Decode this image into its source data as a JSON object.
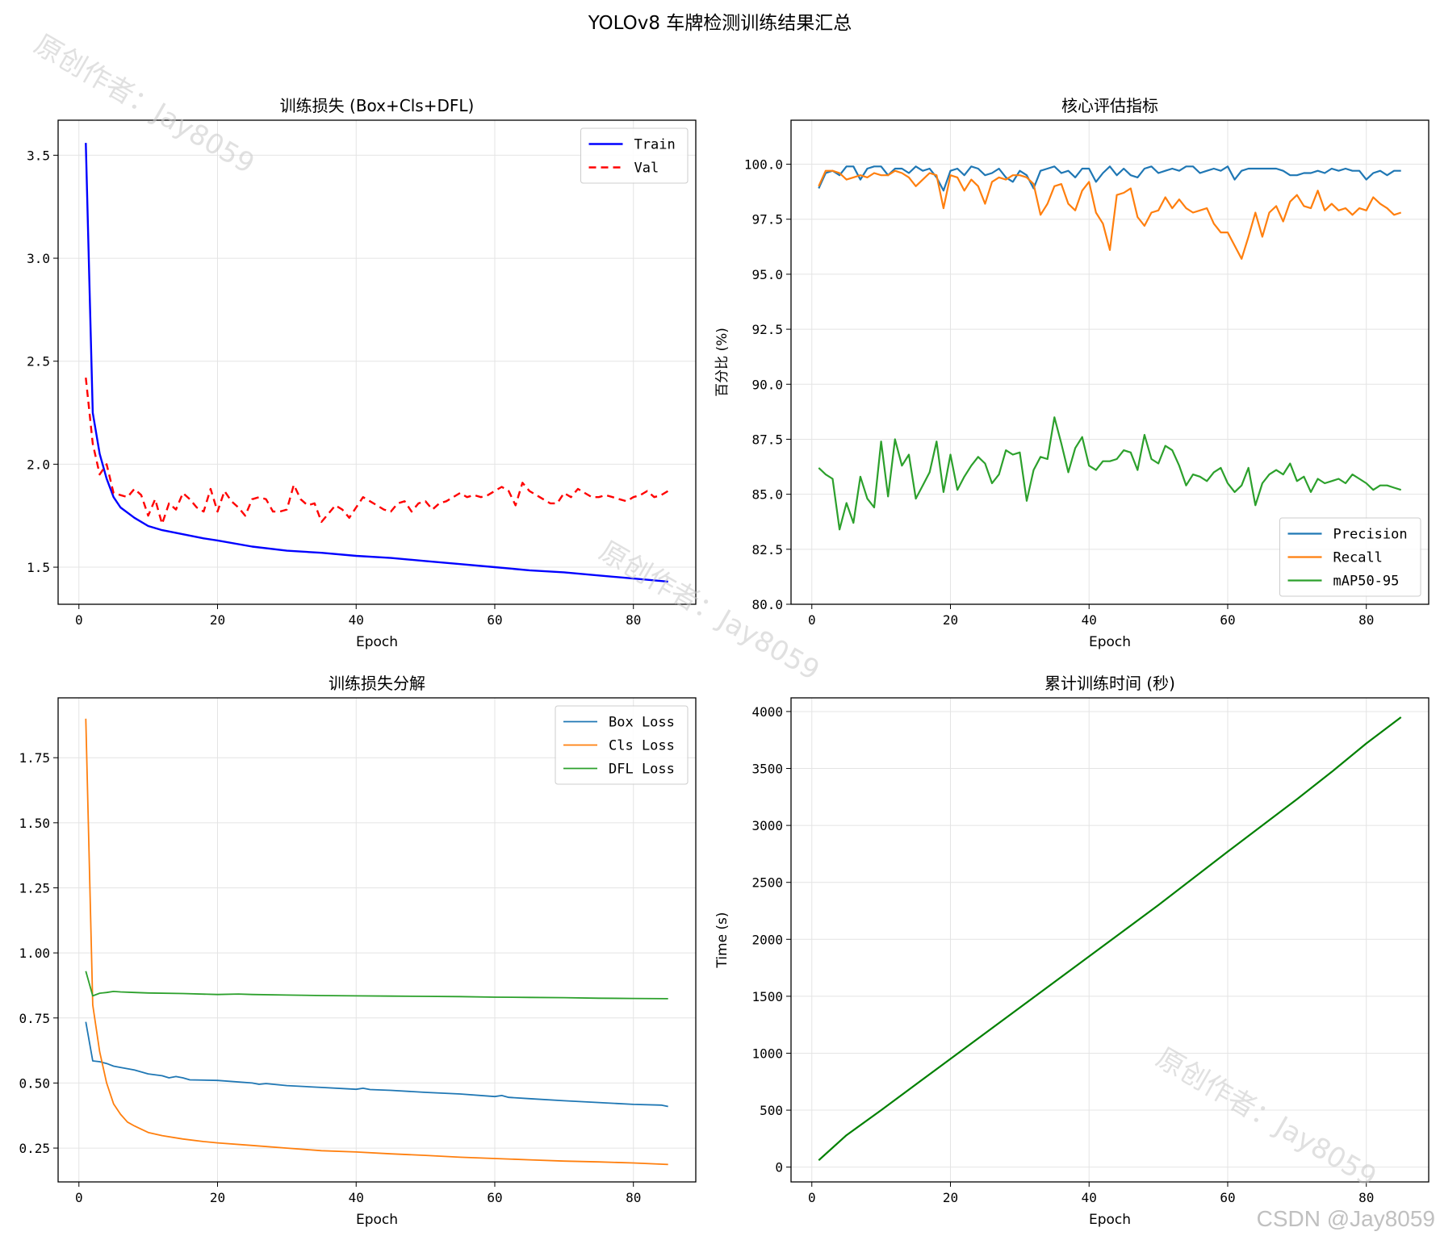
{
  "figure": {
    "suptitle": "YOLOv8 车牌检测训练结果汇总",
    "watermarks": [
      "原创作者：Jay8059",
      "原创作者：Jay8059",
      "原创作者：Jay8059"
    ],
    "credit": "CSDN @Jay8059"
  },
  "chart_data": [
    {
      "type": "line",
      "title": "训练损失 (Box+Cls+DFL)",
      "xlabel": "Epoch",
      "ylabel": "",
      "xlim": [
        -3,
        89
      ],
      "ylim": [
        1.32,
        3.67
      ],
      "xticks": [
        0,
        20,
        40,
        60,
        80
      ],
      "yticks": [
        1.5,
        2.0,
        2.5,
        3.0,
        3.5
      ],
      "ytick_format": 1,
      "grid": true,
      "legend": "top-right",
      "series": [
        {
          "name": "Train",
          "color": "#0000ff",
          "dash": "",
          "width": 2.4,
          "x": [
            1,
            2,
            3,
            4,
            5,
            6,
            8,
            10,
            12,
            15,
            18,
            20,
            25,
            30,
            35,
            40,
            45,
            50,
            55,
            60,
            65,
            70,
            75,
            80,
            85
          ],
          "y": [
            3.56,
            2.25,
            2.05,
            1.93,
            1.84,
            1.79,
            1.74,
            1.7,
            1.68,
            1.66,
            1.64,
            1.63,
            1.6,
            1.58,
            1.57,
            1.555,
            1.545,
            1.53,
            1.515,
            1.5,
            1.485,
            1.475,
            1.46,
            1.445,
            1.43
          ]
        },
        {
          "name": "Val",
          "color": "#ff0000",
          "dash": "9,6",
          "width": 2.4,
          "x": [
            1,
            2,
            3,
            4,
            5,
            6,
            7,
            8,
            9,
            10,
            11,
            12,
            13,
            14,
            15,
            16,
            17,
            18,
            19,
            20,
            21,
            22,
            23,
            24,
            25,
            26,
            27,
            28,
            29,
            30,
            31,
            32,
            33,
            34,
            35,
            36,
            37,
            38,
            39,
            40,
            41,
            42,
            43,
            44,
            45,
            46,
            47,
            48,
            49,
            50,
            51,
            52,
            53,
            54,
            55,
            56,
            57,
            58,
            59,
            60,
            61,
            62,
            63,
            64,
            65,
            66,
            67,
            68,
            69,
            70,
            71,
            72,
            73,
            74,
            75,
            76,
            77,
            78,
            79,
            80,
            81,
            82,
            83,
            84,
            85
          ],
          "y": [
            2.42,
            2.1,
            1.95,
            2.0,
            1.86,
            1.85,
            1.84,
            1.88,
            1.85,
            1.75,
            1.83,
            1.71,
            1.81,
            1.78,
            1.86,
            1.83,
            1.79,
            1.77,
            1.88,
            1.77,
            1.87,
            1.82,
            1.79,
            1.75,
            1.83,
            1.84,
            1.83,
            1.77,
            1.77,
            1.78,
            1.9,
            1.83,
            1.8,
            1.81,
            1.72,
            1.76,
            1.8,
            1.78,
            1.74,
            1.79,
            1.84,
            1.82,
            1.8,
            1.78,
            1.77,
            1.81,
            1.82,
            1.77,
            1.81,
            1.82,
            1.78,
            1.81,
            1.82,
            1.84,
            1.86,
            1.84,
            1.85,
            1.84,
            1.85,
            1.87,
            1.89,
            1.87,
            1.8,
            1.91,
            1.87,
            1.85,
            1.83,
            1.81,
            1.81,
            1.86,
            1.84,
            1.88,
            1.86,
            1.84,
            1.84,
            1.85,
            1.84,
            1.83,
            1.82,
            1.84,
            1.85,
            1.87,
            1.84,
            1.85,
            1.87
          ]
        }
      ]
    },
    {
      "type": "line",
      "title": "核心评估指标",
      "xlabel": "Epoch",
      "ylabel": "百分比 (%)",
      "xlim": [
        -3,
        89
      ],
      "ylim": [
        80,
        102
      ],
      "xticks": [
        0,
        20,
        40,
        60,
        80
      ],
      "yticks": [
        80.0,
        82.5,
        85.0,
        87.5,
        90.0,
        92.5,
        95.0,
        97.5,
        100.0
      ],
      "ytick_format": 1,
      "grid": true,
      "legend": "bottom-right",
      "series": [
        {
          "name": "Precision",
          "color": "#1f77b4",
          "dash": "",
          "width": 2.2,
          "x": [
            1,
            2,
            3,
            4,
            5,
            6,
            7,
            8,
            9,
            10,
            11,
            12,
            13,
            14,
            15,
            16,
            17,
            18,
            19,
            20,
            21,
            22,
            23,
            24,
            25,
            26,
            27,
            28,
            29,
            30,
            31,
            32,
            33,
            34,
            35,
            36,
            37,
            38,
            39,
            40,
            41,
            42,
            43,
            44,
            45,
            46,
            47,
            48,
            49,
            50,
            51,
            52,
            53,
            54,
            55,
            56,
            57,
            58,
            59,
            60,
            61,
            62,
            63,
            64,
            65,
            66,
            67,
            68,
            69,
            70,
            71,
            72,
            73,
            74,
            75,
            76,
            77,
            78,
            79,
            80,
            81,
            82,
            83,
            84,
            85
          ],
          "y": [
            98.9,
            99.6,
            99.7,
            99.5,
            99.9,
            99.9,
            99.3,
            99.8,
            99.9,
            99.9,
            99.5,
            99.8,
            99.8,
            99.6,
            99.9,
            99.7,
            99.8,
            99.4,
            98.8,
            99.7,
            99.8,
            99.5,
            99.9,
            99.8,
            99.5,
            99.6,
            99.8,
            99.4,
            99.2,
            99.7,
            99.5,
            98.9,
            99.7,
            99.8,
            99.9,
            99.6,
            99.7,
            99.4,
            99.8,
            99.8,
            99.2,
            99.6,
            99.9,
            99.5,
            99.8,
            99.5,
            99.4,
            99.8,
            99.9,
            99.6,
            99.7,
            99.8,
            99.7,
            99.9,
            99.9,
            99.6,
            99.7,
            99.8,
            99.7,
            99.9,
            99.3,
            99.7,
            99.8,
            99.8,
            99.8,
            99.8,
            99.8,
            99.7,
            99.5,
            99.5,
            99.6,
            99.6,
            99.7,
            99.6,
            99.8,
            99.7,
            99.8,
            99.7,
            99.7,
            99.3,
            99.6,
            99.7,
            99.5,
            99.7,
            99.7
          ]
        },
        {
          "name": "Recall",
          "color": "#ff7f0e",
          "dash": "",
          "width": 2.2,
          "x": [
            1,
            2,
            3,
            4,
            5,
            6,
            7,
            8,
            9,
            10,
            11,
            12,
            13,
            14,
            15,
            16,
            17,
            18,
            19,
            20,
            21,
            22,
            23,
            24,
            25,
            26,
            27,
            28,
            29,
            30,
            31,
            32,
            33,
            34,
            35,
            36,
            37,
            38,
            39,
            40,
            41,
            42,
            43,
            44,
            45,
            46,
            47,
            48,
            49,
            50,
            51,
            52,
            53,
            54,
            55,
            56,
            57,
            58,
            59,
            60,
            61,
            62,
            63,
            64,
            65,
            66,
            67,
            68,
            69,
            70,
            71,
            72,
            73,
            74,
            75,
            76,
            77,
            78,
            79,
            80,
            81,
            82,
            83,
            84,
            85
          ],
          "y": [
            99.0,
            99.7,
            99.7,
            99.6,
            99.3,
            99.4,
            99.5,
            99.4,
            99.6,
            99.5,
            99.5,
            99.7,
            99.6,
            99.4,
            99.0,
            99.3,
            99.6,
            99.5,
            98.0,
            99.5,
            99.4,
            98.8,
            99.3,
            99.0,
            98.2,
            99.2,
            99.4,
            99.3,
            99.5,
            99.5,
            99.4,
            99.1,
            97.7,
            98.2,
            99.0,
            99.1,
            98.2,
            97.9,
            98.8,
            99.2,
            97.8,
            97.3,
            96.1,
            98.6,
            98.7,
            98.9,
            97.6,
            97.2,
            97.8,
            97.9,
            98.5,
            98.0,
            98.4,
            98.0,
            97.8,
            97.9,
            98.0,
            97.3,
            96.9,
            96.9,
            96.3,
            95.7,
            96.7,
            97.8,
            96.7,
            97.8,
            98.1,
            97.4,
            98.3,
            98.6,
            98.1,
            98.0,
            98.8,
            97.9,
            98.2,
            97.9,
            98.0,
            97.7,
            98.0,
            97.9,
            98.5,
            98.2,
            98.0,
            97.7,
            97.8
          ]
        },
        {
          "name": "mAP50-95",
          "color": "#2ca02c",
          "dash": "",
          "width": 2.2,
          "x": [
            1,
            2,
            3,
            4,
            5,
            6,
            7,
            8,
            9,
            10,
            11,
            12,
            13,
            14,
            15,
            16,
            17,
            18,
            19,
            20,
            21,
            22,
            23,
            24,
            25,
            26,
            27,
            28,
            29,
            30,
            31,
            32,
            33,
            34,
            35,
            36,
            37,
            38,
            39,
            40,
            41,
            42,
            43,
            44,
            45,
            46,
            47,
            48,
            49,
            50,
            51,
            52,
            53,
            54,
            55,
            56,
            57,
            58,
            59,
            60,
            61,
            62,
            63,
            64,
            65,
            66,
            67,
            68,
            69,
            70,
            71,
            72,
            73,
            74,
            75,
            76,
            77,
            78,
            79,
            80,
            81,
            82,
            83,
            84,
            85
          ],
          "y": [
            86.2,
            85.9,
            85.7,
            83.4,
            84.6,
            83.7,
            85.8,
            84.8,
            84.4,
            87.4,
            84.9,
            87.5,
            86.3,
            86.8,
            84.8,
            85.4,
            86.0,
            87.4,
            85.1,
            86.8,
            85.2,
            85.8,
            86.3,
            86.7,
            86.4,
            85.5,
            85.9,
            87.0,
            86.8,
            86.9,
            84.7,
            86.1,
            86.7,
            86.6,
            88.5,
            87.3,
            86.0,
            87.1,
            87.6,
            86.3,
            86.1,
            86.5,
            86.5,
            86.6,
            87.0,
            86.9,
            86.1,
            87.7,
            86.6,
            86.4,
            87.2,
            87.0,
            86.3,
            85.4,
            85.9,
            85.8,
            85.6,
            86.0,
            86.2,
            85.5,
            85.1,
            85.4,
            86.2,
            84.5,
            85.5,
            85.9,
            86.1,
            85.9,
            86.4,
            85.6,
            85.8,
            85.1,
            85.7,
            85.5,
            85.6,
            85.7,
            85.5,
            85.9,
            85.7,
            85.5,
            85.2,
            85.4,
            85.4,
            85.3,
            85.2
          ]
        }
      ]
    },
    {
      "type": "line",
      "title": "训练损失分解",
      "xlabel": "Epoch",
      "ylabel": "",
      "xlim": [
        -3,
        89
      ],
      "ylim": [
        0.12,
        1.98
      ],
      "xticks": [
        0,
        20,
        40,
        60,
        80
      ],
      "yticks": [
        0.25,
        0.5,
        0.75,
        1.0,
        1.25,
        1.5,
        1.75
      ],
      "ytick_format": 2,
      "grid": true,
      "legend": "top-right",
      "series": [
        {
          "name": "Box Loss",
          "color": "#1f77b4",
          "dash": "",
          "width": 1.8,
          "x": [
            1,
            2,
            3,
            4,
            5,
            6,
            8,
            10,
            12,
            13,
            14,
            15,
            16,
            20,
            25,
            26,
            27,
            30,
            35,
            40,
            41,
            42,
            45,
            50,
            55,
            60,
            61,
            62,
            65,
            70,
            75,
            80,
            84,
            85
          ],
          "y": [
            0.735,
            0.585,
            0.582,
            0.575,
            0.565,
            0.56,
            0.55,
            0.535,
            0.528,
            0.52,
            0.525,
            0.52,
            0.512,
            0.51,
            0.5,
            0.495,
            0.498,
            0.49,
            0.483,
            0.476,
            0.48,
            0.475,
            0.472,
            0.464,
            0.458,
            0.448,
            0.452,
            0.445,
            0.44,
            0.432,
            0.425,
            0.418,
            0.415,
            0.41
          ]
        },
        {
          "name": "Cls Loss",
          "color": "#ff7f0e",
          "dash": "",
          "width": 1.8,
          "x": [
            1,
            2,
            3,
            4,
            5,
            6,
            7,
            8,
            10,
            12,
            15,
            18,
            20,
            25,
            30,
            35,
            40,
            45,
            50,
            55,
            60,
            65,
            70,
            75,
            80,
            85
          ],
          "y": [
            1.9,
            0.8,
            0.62,
            0.5,
            0.42,
            0.38,
            0.35,
            0.335,
            0.31,
            0.298,
            0.285,
            0.275,
            0.27,
            0.26,
            0.25,
            0.24,
            0.235,
            0.228,
            0.222,
            0.215,
            0.21,
            0.205,
            0.2,
            0.197,
            0.193,
            0.187
          ]
        },
        {
          "name": "DFL Loss",
          "color": "#2ca02c",
          "dash": "",
          "width": 1.8,
          "x": [
            1,
            2,
            3,
            4,
            5,
            6,
            8,
            10,
            15,
            20,
            23,
            25,
            30,
            35,
            40,
            45,
            50,
            55,
            60,
            65,
            70,
            75,
            80,
            85
          ],
          "y": [
            0.93,
            0.835,
            0.845,
            0.848,
            0.852,
            0.85,
            0.848,
            0.846,
            0.844,
            0.84,
            0.842,
            0.84,
            0.838,
            0.836,
            0.835,
            0.834,
            0.833,
            0.832,
            0.83,
            0.829,
            0.828,
            0.826,
            0.825,
            0.824
          ]
        }
      ]
    },
    {
      "type": "line",
      "title": "累计训练时间 (秒)",
      "xlabel": "Epoch",
      "ylabel": "Time (s)",
      "xlim": [
        -3,
        89
      ],
      "ylim": [
        -130,
        4120
      ],
      "xticks": [
        0,
        20,
        40,
        60,
        80
      ],
      "yticks": [
        0,
        500,
        1000,
        1500,
        2000,
        2500,
        3000,
        3500,
        4000
      ],
      "ytick_format": 0,
      "grid": true,
      "legend": "none",
      "series": [
        {
          "name": "",
          "color": "#008000",
          "dash": "",
          "width": 2.2,
          "x": [
            1,
            5,
            10,
            20,
            30,
            40,
            50,
            60,
            70,
            75,
            80,
            85
          ],
          "y": [
            60,
            280,
            500,
            950,
            1400,
            1850,
            2300,
            2770,
            3230,
            3470,
            3720,
            3950
          ]
        }
      ]
    }
  ]
}
